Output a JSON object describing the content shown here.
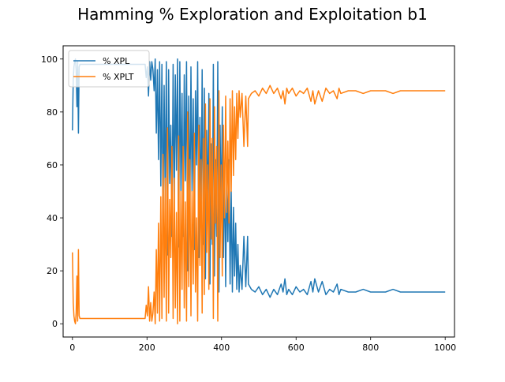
{
  "chart_data": {
    "type": "line",
    "title": "Hamming % Exploration and Exploitation b1",
    "xlabel": "",
    "ylabel": "",
    "xlim": [
      -25,
      1025
    ],
    "ylim": [
      -5,
      105
    ],
    "x_ticks": [
      0,
      200,
      400,
      600,
      800,
      1000
    ],
    "y_ticks": [
      0,
      20,
      40,
      60,
      80,
      100
    ],
    "grid": false,
    "legend_placement": "upper left",
    "series": [
      {
        "name": "% XPL",
        "color": "#1f77b4",
        "points": [
          [
            0,
            73
          ],
          [
            2,
            92
          ],
          [
            4,
            97
          ],
          [
            6,
            99
          ],
          [
            8,
            100
          ],
          [
            10,
            96
          ],
          [
            12,
            82
          ],
          [
            14,
            99
          ],
          [
            16,
            72
          ],
          [
            18,
            97
          ],
          [
            20,
            98
          ],
          [
            30,
            98
          ],
          [
            40,
            98
          ],
          [
            60,
            98
          ],
          [
            80,
            98
          ],
          [
            100,
            98
          ],
          [
            120,
            98
          ],
          [
            140,
            98
          ],
          [
            160,
            98
          ],
          [
            180,
            98
          ],
          [
            195,
            98
          ],
          [
            198,
            93
          ],
          [
            201,
            97
          ],
          [
            204,
            86
          ],
          [
            207,
            99
          ],
          [
            210,
            92
          ],
          [
            213,
            99
          ],
          [
            216,
            96
          ],
          [
            219,
            88
          ],
          [
            222,
            100
          ],
          [
            225,
            72
          ],
          [
            228,
            96
          ],
          [
            231,
            62
          ],
          [
            234,
            99
          ],
          [
            237,
            52
          ],
          [
            240,
            98
          ],
          [
            243,
            36
          ],
          [
            246,
            90
          ],
          [
            249,
            45
          ],
          [
            252,
            99
          ],
          [
            255,
            26
          ],
          [
            258,
            96
          ],
          [
            261,
            53
          ],
          [
            264,
            75
          ],
          [
            267,
            33
          ],
          [
            270,
            98
          ],
          [
            273,
            45
          ],
          [
            276,
            94
          ],
          [
            279,
            58
          ],
          [
            282,
            100
          ],
          [
            285,
            29
          ],
          [
            288,
            99
          ],
          [
            291,
            50
          ],
          [
            294,
            87
          ],
          [
            297,
            33
          ],
          [
            300,
            94
          ],
          [
            303,
            54
          ],
          [
            306,
            99
          ],
          [
            309,
            20
          ],
          [
            312,
            86
          ],
          [
            315,
            38
          ],
          [
            318,
            97
          ],
          [
            321,
            50
          ],
          [
            324,
            85
          ],
          [
            327,
            28
          ],
          [
            330,
            88
          ],
          [
            333,
            60
          ],
          [
            336,
            99
          ],
          [
            339,
            25
          ],
          [
            342,
            78
          ],
          [
            345,
            38
          ],
          [
            348,
            96
          ],
          [
            351,
            30
          ],
          [
            354,
            89
          ],
          [
            357,
            17
          ],
          [
            360,
            73
          ],
          [
            363,
            40
          ],
          [
            366,
            87
          ],
          [
            369,
            15
          ],
          [
            372,
            68
          ],
          [
            375,
            30
          ],
          [
            378,
            98
          ],
          [
            381,
            18
          ],
          [
            384,
            62
          ],
          [
            387,
            33
          ],
          [
            390,
            99
          ],
          [
            393,
            12
          ],
          [
            396,
            75
          ],
          [
            399,
            40
          ],
          [
            402,
            82
          ],
          [
            405,
            25
          ],
          [
            408,
            60
          ],
          [
            411,
            14
          ],
          [
            414,
            58
          ],
          [
            417,
            31
          ],
          [
            420,
            62
          ],
          [
            423,
            15
          ],
          [
            426,
            50
          ],
          [
            429,
            12
          ],
          [
            432,
            44
          ],
          [
            435,
            18
          ],
          [
            438,
            38
          ],
          [
            441,
            13
          ],
          [
            444,
            30
          ],
          [
            447,
            12
          ],
          [
            450,
            22
          ],
          [
            455,
            13
          ],
          [
            460,
            33
          ],
          [
            465,
            14
          ],
          [
            470,
            33
          ],
          [
            472,
            15
          ],
          [
            480,
            13
          ],
          [
            490,
            12
          ],
          [
            500,
            14
          ],
          [
            510,
            11
          ],
          [
            520,
            13
          ],
          [
            530,
            10
          ],
          [
            540,
            13
          ],
          [
            550,
            11
          ],
          [
            560,
            15
          ],
          [
            565,
            12
          ],
          [
            570,
            17
          ],
          [
            575,
            11
          ],
          [
            580,
            13
          ],
          [
            590,
            11
          ],
          [
            600,
            14
          ],
          [
            610,
            12
          ],
          [
            620,
            13
          ],
          [
            630,
            11
          ],
          [
            640,
            16
          ],
          [
            645,
            12
          ],
          [
            650,
            17
          ],
          [
            660,
            12
          ],
          [
            670,
            16
          ],
          [
            680,
            11
          ],
          [
            690,
            13
          ],
          [
            700,
            12
          ],
          [
            710,
            15
          ],
          [
            715,
            11
          ],
          [
            720,
            13
          ],
          [
            740,
            12
          ],
          [
            760,
            12
          ],
          [
            780,
            13
          ],
          [
            800,
            12
          ],
          [
            820,
            12
          ],
          [
            840,
            12
          ],
          [
            860,
            13
          ],
          [
            880,
            12
          ],
          [
            900,
            12
          ],
          [
            920,
            12
          ],
          [
            940,
            12
          ],
          [
            960,
            12
          ],
          [
            980,
            12
          ],
          [
            1000,
            12
          ]
        ]
      },
      {
        "name": "% XPLT",
        "color": "#ff7f0e",
        "points": [
          [
            0,
            27
          ],
          [
            2,
            8
          ],
          [
            4,
            3
          ],
          [
            6,
            1
          ],
          [
            8,
            0
          ],
          [
            10,
            4
          ],
          [
            12,
            18
          ],
          [
            14,
            1
          ],
          [
            16,
            28
          ],
          [
            18,
            3
          ],
          [
            20,
            2
          ],
          [
            30,
            2
          ],
          [
            40,
            2
          ],
          [
            60,
            2
          ],
          [
            80,
            2
          ],
          [
            100,
            2
          ],
          [
            120,
            2
          ],
          [
            140,
            2
          ],
          [
            160,
            2
          ],
          [
            180,
            2
          ],
          [
            195,
            2
          ],
          [
            198,
            7
          ],
          [
            201,
            3
          ],
          [
            204,
            14
          ],
          [
            207,
            1
          ],
          [
            210,
            8
          ],
          [
            213,
            1
          ],
          [
            216,
            4
          ],
          [
            219,
            12
          ],
          [
            222,
            0
          ],
          [
            225,
            28
          ],
          [
            228,
            4
          ],
          [
            231,
            38
          ],
          [
            234,
            1
          ],
          [
            237,
            48
          ],
          [
            240,
            2
          ],
          [
            243,
            64
          ],
          [
            246,
            10
          ],
          [
            249,
            55
          ],
          [
            252,
            1
          ],
          [
            255,
            74
          ],
          [
            258,
            4
          ],
          [
            261,
            47
          ],
          [
            264,
            25
          ],
          [
            267,
            67
          ],
          [
            270,
            2
          ],
          [
            273,
            55
          ],
          [
            276,
            6
          ],
          [
            279,
            42
          ],
          [
            282,
            0
          ],
          [
            285,
            71
          ],
          [
            288,
            1
          ],
          [
            291,
            50
          ],
          [
            294,
            13
          ],
          [
            297,
            67
          ],
          [
            300,
            6
          ],
          [
            303,
            46
          ],
          [
            306,
            1
          ],
          [
            309,
            80
          ],
          [
            312,
            14
          ],
          [
            315,
            62
          ],
          [
            318,
            3
          ],
          [
            321,
            50
          ],
          [
            324,
            15
          ],
          [
            327,
            72
          ],
          [
            330,
            12
          ],
          [
            333,
            40
          ],
          [
            336,
            1
          ],
          [
            339,
            75
          ],
          [
            342,
            22
          ],
          [
            345,
            62
          ],
          [
            348,
            4
          ],
          [
            351,
            70
          ],
          [
            354,
            11
          ],
          [
            357,
            83
          ],
          [
            360,
            27
          ],
          [
            363,
            60
          ],
          [
            366,
            13
          ],
          [
            369,
            85
          ],
          [
            372,
            32
          ],
          [
            375,
            70
          ],
          [
            378,
            2
          ],
          [
            381,
            82
          ],
          [
            384,
            38
          ],
          [
            387,
            67
          ],
          [
            390,
            1
          ],
          [
            393,
            88
          ],
          [
            396,
            25
          ],
          [
            399,
            60
          ],
          [
            402,
            18
          ],
          [
            405,
            75
          ],
          [
            408,
            40
          ],
          [
            411,
            86
          ],
          [
            414,
            42
          ],
          [
            417,
            69
          ],
          [
            420,
            38
          ],
          [
            423,
            85
          ],
          [
            426,
            50
          ],
          [
            429,
            88
          ],
          [
            432,
            56
          ],
          [
            435,
            82
          ],
          [
            438,
            62
          ],
          [
            441,
            87
          ],
          [
            444,
            70
          ],
          [
            447,
            88
          ],
          [
            450,
            78
          ],
          [
            455,
            87
          ],
          [
            460,
            67
          ],
          [
            465,
            86
          ],
          [
            470,
            67
          ],
          [
            472,
            85
          ],
          [
            480,
            87
          ],
          [
            490,
            88
          ],
          [
            500,
            86
          ],
          [
            510,
            89
          ],
          [
            520,
            87
          ],
          [
            530,
            90
          ],
          [
            540,
            87
          ],
          [
            550,
            89
          ],
          [
            560,
            85
          ],
          [
            565,
            88
          ],
          [
            570,
            83
          ],
          [
            575,
            89
          ],
          [
            580,
            87
          ],
          [
            590,
            89
          ],
          [
            600,
            86
          ],
          [
            610,
            88
          ],
          [
            620,
            87
          ],
          [
            630,
            89
          ],
          [
            640,
            84
          ],
          [
            645,
            88
          ],
          [
            650,
            83
          ],
          [
            660,
            88
          ],
          [
            670,
            84
          ],
          [
            680,
            89
          ],
          [
            690,
            87
          ],
          [
            700,
            88
          ],
          [
            710,
            85
          ],
          [
            715,
            89
          ],
          [
            720,
            87
          ],
          [
            740,
            88
          ],
          [
            760,
            88
          ],
          [
            780,
            87
          ],
          [
            800,
            88
          ],
          [
            820,
            88
          ],
          [
            840,
            88
          ],
          [
            860,
            87
          ],
          [
            880,
            88
          ],
          [
            900,
            88
          ],
          [
            920,
            88
          ],
          [
            940,
            88
          ],
          [
            960,
            88
          ],
          [
            980,
            88
          ],
          [
            1000,
            88
          ]
        ]
      }
    ]
  }
}
